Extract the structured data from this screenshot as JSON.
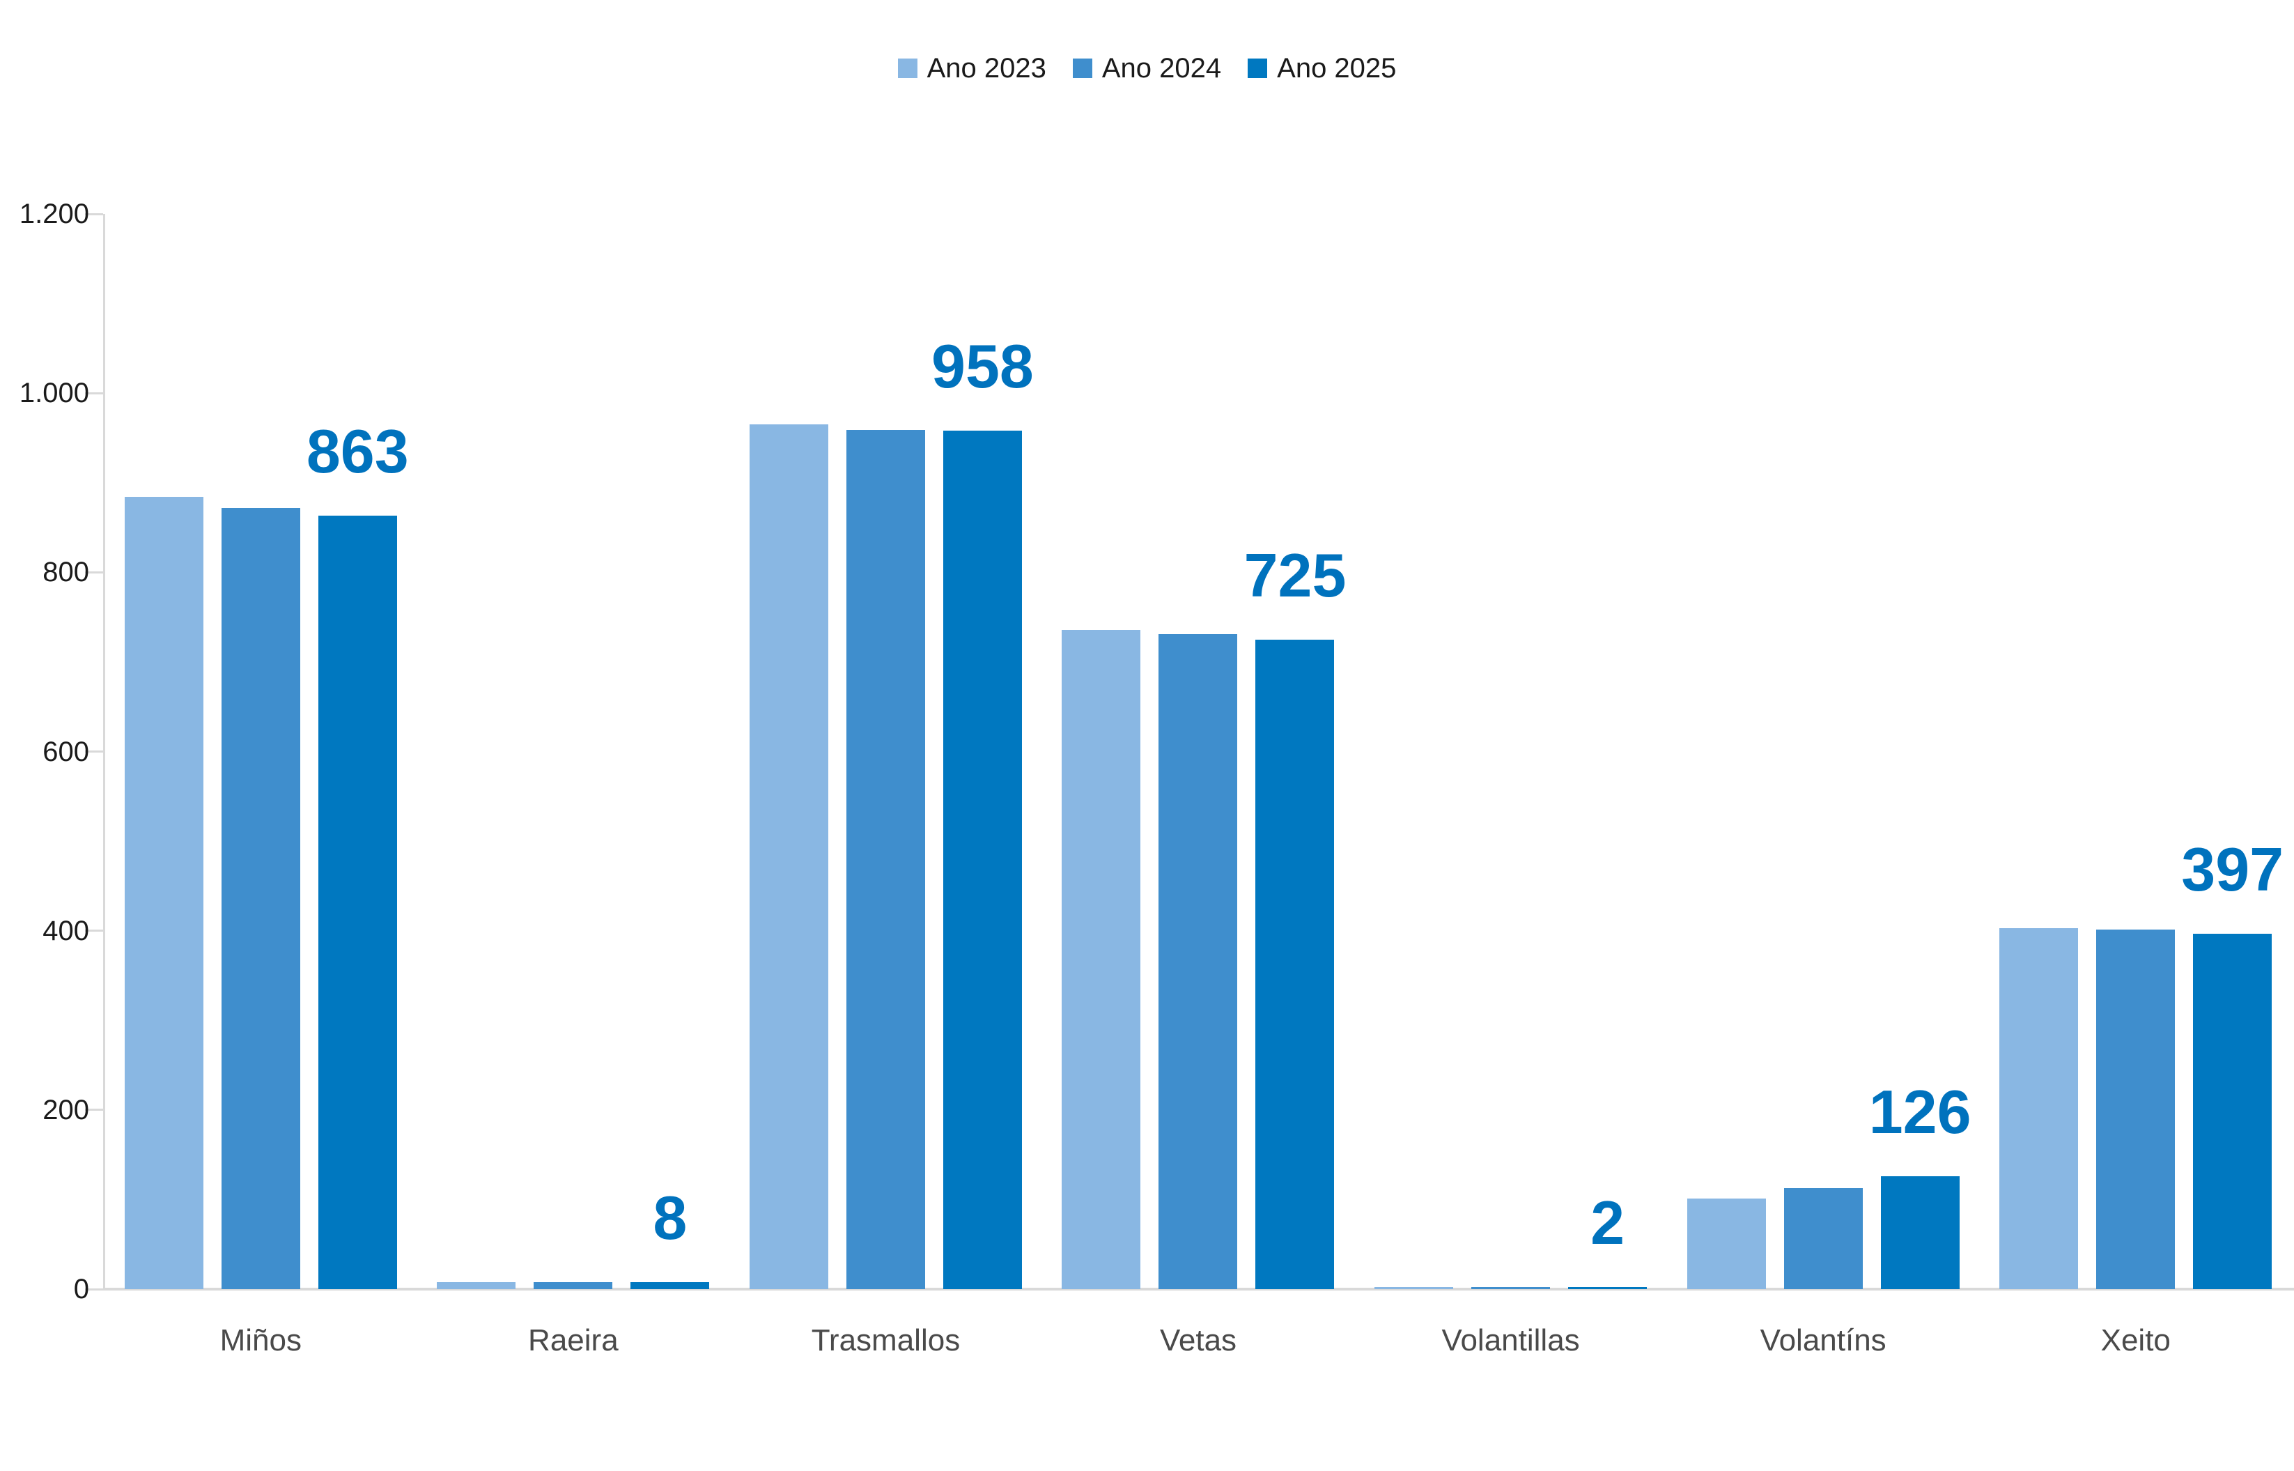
{
  "legend": [
    {
      "label": "Ano 2023",
      "color": "#89b7e3"
    },
    {
      "label": "Ano 2024",
      "color": "#3f8ecd"
    },
    {
      "label": "Ano 2025",
      "color": "#0078c0"
    }
  ],
  "chart_data": {
    "type": "bar",
    "title": "",
    "xlabel": "",
    "ylabel": "",
    "categories": [
      "Miños",
      "Raeira",
      "Trasmallos",
      "Vetas",
      "Volantillas",
      "Volantíns",
      "Xeito"
    ],
    "series": [
      {
        "name": "Ano 2023",
        "color": "#89b7e3",
        "values": [
          884,
          8,
          965,
          736,
          2,
          101,
          403
        ]
      },
      {
        "name": "Ano 2024",
        "color": "#3f8ecd",
        "values": [
          872,
          8,
          959,
          731,
          2,
          113,
          401
        ]
      },
      {
        "name": "Ano 2025",
        "color": "#0078c0",
        "values": [
          863,
          8,
          958,
          725,
          2,
          126,
          397
        ]
      }
    ],
    "data_labels": {
      "series": "Ano 2025",
      "values": [
        "863",
        "8",
        "958",
        "725",
        "2",
        "126",
        "397"
      ],
      "color": "#0072bd"
    },
    "yaxis": {
      "min": 0,
      "max": 1200,
      "step": 200,
      "tick_labels": [
        "0",
        "200",
        "400",
        "600",
        "800",
        "1.000",
        "1.200"
      ]
    },
    "grid": false,
    "legend_position": "top",
    "axis_color": "#d9d9d9"
  }
}
